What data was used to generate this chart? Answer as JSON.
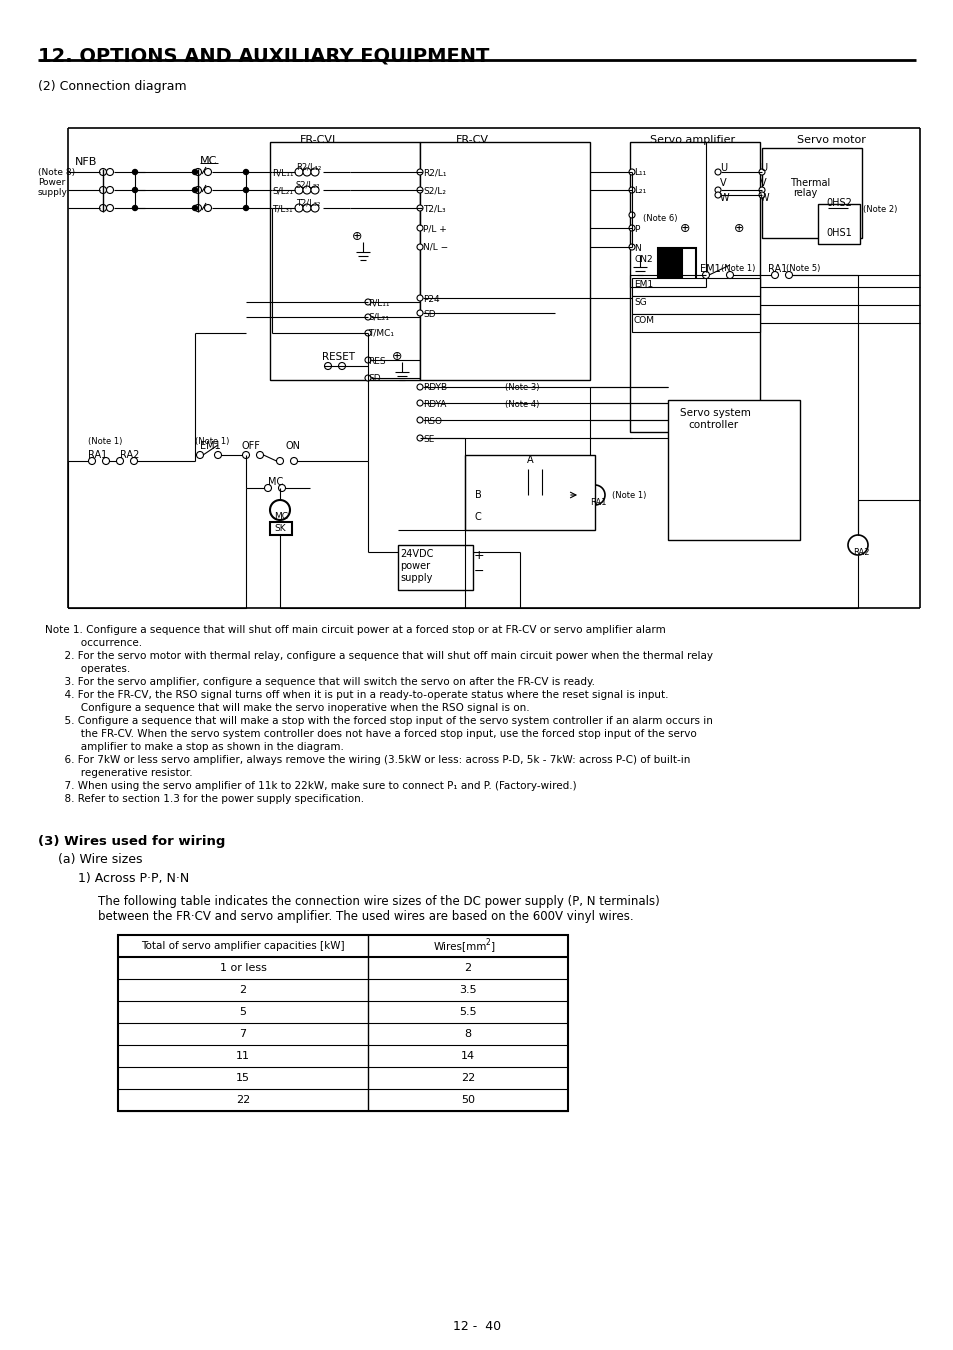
{
  "title": "12. OPTIONS AND AUXILIARY EQUIPMENT",
  "subtitle": "(2) Connection diagram",
  "section3_title": "(3) Wires used for wiring",
  "section3a_title": "(a) Wire sizes",
  "section3a1_title": "1) Across P·P, N·N",
  "section3_text1": "The following table indicates the connection wire sizes of the DC power supply (P, N terminals)",
  "section3_text2": "between the FR·CV and servo amplifier. The used wires are based on the 600V vinyl wires.",
  "table_header_left": "Total of servo amplifier capacities [kW]",
  "table_header_right": "Wires[mm",
  "table_header_sup": "2",
  "table_rows": [
    [
      "1 or less",
      "2"
    ],
    [
      "2",
      "3.5"
    ],
    [
      "5",
      "5.5"
    ],
    [
      "7",
      "8"
    ],
    [
      "11",
      "14"
    ],
    [
      "15",
      "22"
    ],
    [
      "22",
      "50"
    ]
  ],
  "notes": [
    [
      "Note 1. Configure a sequence that will shut off main circuit power at a forced stop or at FR-CV or servo amplifier alarm",
      false
    ],
    [
      "           occurrence.",
      false
    ],
    [
      "      2. For the servo motor with thermal relay, configure a sequence that will shut off main circuit power when the thermal relay",
      false
    ],
    [
      "           operates.",
      false
    ],
    [
      "      3. For the servo amplifier, configure a sequence that will switch the servo on after the FR-CV is ready.",
      false
    ],
    [
      "      4. For the FR-CV, the RSO signal turns off when it is put in a ready-to-operate status where the reset signal is input.",
      false
    ],
    [
      "           Configure a sequence that will make the servo inoperative when the RSO signal is on.",
      false
    ],
    [
      "      5. Configure a sequence that will make a stop with the forced stop input of the servo system controller if an alarm occurs in",
      false
    ],
    [
      "           the FR-CV. When the servo system controller does not have a forced stop input, use the forced stop input of the servo",
      false
    ],
    [
      "           amplifier to make a stop as shown in the diagram.",
      false
    ],
    [
      "      6. For 7kW or less servo amplifier, always remove the wiring (3.5kW or less: across P-D, 5k - 7kW: across P-C) of built-in",
      false
    ],
    [
      "           regenerative resistor.",
      false
    ],
    [
      "      7. When using the servo amplifier of 11k to 22kW, make sure to connect P₁ and P. (Factory-wired.)",
      false
    ],
    [
      "      8. Refer to section 1.3 for the power supply specification.",
      false
    ]
  ],
  "page_number": "12 -  40",
  "bg_color": "#ffffff"
}
